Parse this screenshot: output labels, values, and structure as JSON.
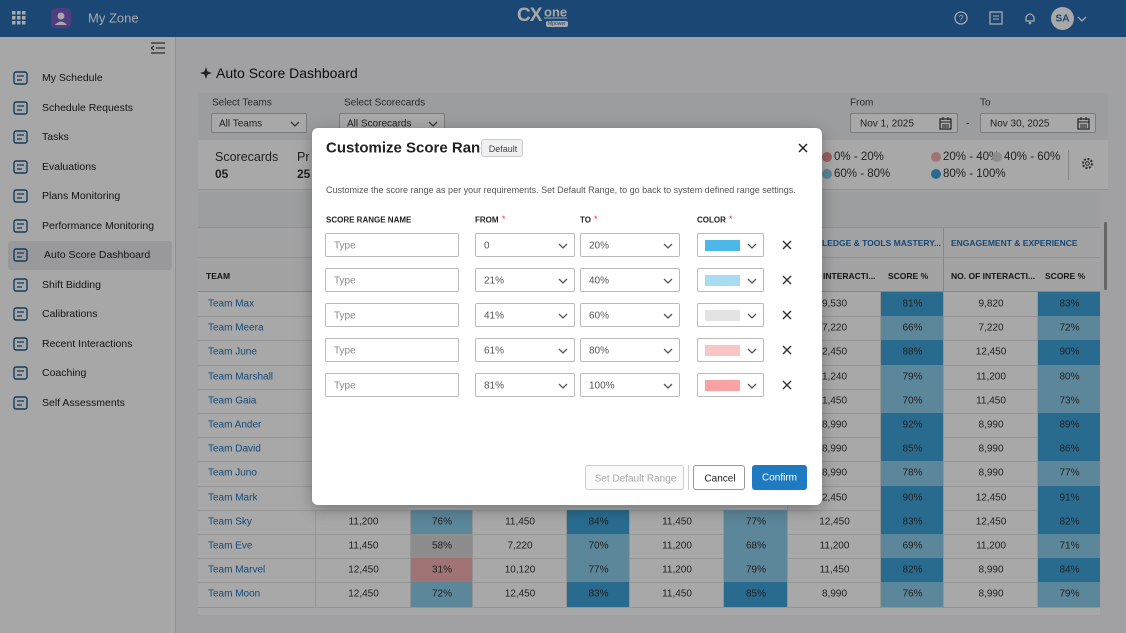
{
  "header": {
    "app": "My Zone",
    "logo": "CX",
    "logo_one": "one",
    "logo_tag": "Mpower",
    "user": "SA"
  },
  "sidebar": {
    "active_item": 6,
    "items": [
      "My Schedule",
      "Schedule Requests",
      "Tasks",
      "Evaluations",
      "Plans Monitoring",
      "Performance Monitoring",
      "Auto Score Dashboard",
      "Shift Bidding",
      "Calibrations",
      "Recent Interactions",
      "Coaching",
      "Self Assessments"
    ]
  },
  "page": {
    "title": "Auto Score Dashboard"
  },
  "filters": {
    "teams_label": "Select Teams",
    "teams_value": "All Teams",
    "scorecards_label": "Select Scorecards",
    "scorecards_value": "All Scorecards",
    "from_label": "From",
    "from_value": "Nov 1, 2025",
    "separator": "-",
    "to_label": "To",
    "to_value": "Nov 30, 2025"
  },
  "summary": [
    {
      "label": "Scorecards",
      "value": "05"
    },
    {
      "label": "Pr",
      "value": "25"
    }
  ],
  "legend": [
    {
      "label": "0% - 20%",
      "color": "#ef8f8f"
    },
    {
      "label": "20% - 40%",
      "color": "#f3b0b0"
    },
    {
      "label": "40% - 60%",
      "color": "#d6d6d6"
    },
    {
      "label": "60% - 80%",
      "color": "#8ccbea"
    },
    {
      "label": "80% - 100%",
      "color": "#3fa3d9"
    }
  ],
  "table": {
    "groups": [
      "LEDGE & TOOLS MASTERY...",
      "ENGAGEMENT & EXPERIENCE"
    ],
    "columns": [
      "TEAM",
      "INTERACTI...",
      "SCORE %",
      "NO. OF INTERACTI...",
      "SCORE %"
    ],
    "rows": [
      {
        "team": "Team Max",
        "cells": [
          "9,530",
          "81%",
          "9,820",
          "83%"
        ]
      },
      {
        "team": "Team Meera",
        "cells": [
          "7,220",
          "66%",
          "7,220",
          "72%"
        ]
      },
      {
        "team": "Team June",
        "cells": [
          "2,450",
          "88%",
          "12,450",
          "90%"
        ]
      },
      {
        "team": "Team Marshall",
        "cells": [
          "1,240",
          "79%",
          "11,200",
          "80%"
        ]
      },
      {
        "team": "Team Gaia",
        "cells": [
          "1,450",
          "70%",
          "11,450",
          "73%"
        ]
      },
      {
        "team": "Team Ander",
        "cells": [
          "8,990",
          "92%",
          "8,990",
          "89%"
        ]
      },
      {
        "team": "Team David",
        "cells": [
          "8,990",
          "85%",
          "8,990",
          "86%"
        ]
      },
      {
        "team": "Team Juno",
        "cells": [
          "8,990",
          "78%",
          "8,990",
          "77%"
        ]
      },
      {
        "team": "Team Mark",
        "cells": [
          "2,450",
          "90%",
          "12,450",
          "91%"
        ]
      },
      {
        "team": "Team Sky",
        "cells": [
          "11,200",
          "76%",
          "11,450",
          "84%",
          "11,450",
          "77%",
          "12,450",
          "83%",
          "12,450",
          "82%"
        ]
      },
      {
        "team": "Team Eve",
        "cells": [
          "11,450",
          "58%",
          "7,220",
          "70%",
          "11,200",
          "68%",
          "11,200",
          "69%",
          "11,200",
          "71%"
        ]
      },
      {
        "team": "Team Marvel",
        "cells": [
          "12,450",
          "31%",
          "10,120",
          "77%",
          "11,200",
          "79%",
          "11,450",
          "82%",
          "8,990",
          "84%"
        ]
      },
      {
        "team": "Team Moon",
        "cells": [
          "12,450",
          "72%",
          "12,450",
          "83%",
          "11,450",
          "85%",
          "8,990",
          "76%",
          "8,990",
          "79%"
        ]
      }
    ]
  },
  "modal": {
    "title": "Customize Score Range",
    "badge": "Default",
    "description": "Customize the score range as per your requirements. Set Default Range, to go back to system defined range settings.",
    "headers": [
      "SCORE RANGE NAME",
      "FROM",
      "TO",
      "COLOR"
    ],
    "required": "*",
    "rows": [
      {
        "name_placeholder": "Type",
        "from": "0",
        "to": "20%",
        "color": "#4cb8e8"
      },
      {
        "name_placeholder": "Type",
        "from": "21%",
        "to": "40%",
        "color": "#a8dcf3"
      },
      {
        "name_placeholder": "Type",
        "from": "41%",
        "to": "60%",
        "color": "#e3e3e3"
      },
      {
        "name_placeholder": "Type",
        "from": "61%",
        "to": "80%",
        "color": "#f8c4c4"
      },
      {
        "name_placeholder": "Type",
        "from": "81%",
        "to": "100%",
        "color": "#f7a3a3"
      }
    ],
    "buttons": [
      "Set Default Range",
      "Cancel",
      "Confirm"
    ]
  }
}
